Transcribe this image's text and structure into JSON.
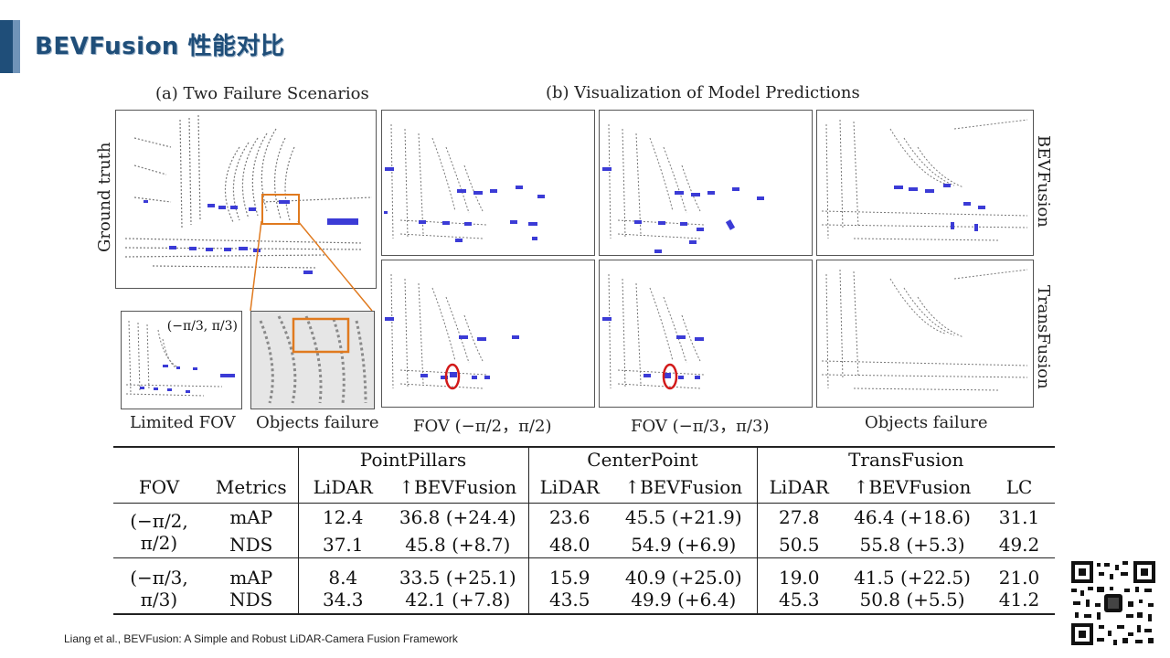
{
  "slide": {
    "title": "BEVFusion 性能对比"
  },
  "figure": {
    "caption_a": "(a) Two Failure Scenarios",
    "caption_b": "(b) Visualization of Model Predictions",
    "row_label_left": "Ground truth",
    "row_label_right_top": "BEVFusion",
    "row_label_right_bottom": "TransFusion",
    "inset_range_label": "(−π/3, π/3)",
    "bottom_captions": [
      "Limited FOV",
      "Objects failure",
      "FOV (−π/2，π/2)",
      "FOV (−π/3，π/3)",
      "Objects failure"
    ],
    "colors": {
      "box": "#3b3bd6",
      "highlight": "#e07a1f",
      "miss_circle": "#d21a1a",
      "points": "#7a7a7a"
    }
  },
  "table": {
    "group_headers": [
      "PointPillars",
      "CenterPoint",
      "TransFusion"
    ],
    "column_headers": [
      "FOV",
      "Metrics",
      "LiDAR",
      "↑BEVFusion",
      "LiDAR",
      "↑BEVFusion",
      "LiDAR",
      "↑BEVFusion",
      "LC"
    ],
    "blocks": [
      {
        "fov_line1": "(−π/2,",
        "fov_line2": "π/2)",
        "rows": [
          [
            "mAP",
            "12.4",
            "36.8 (+24.4)",
            "23.6",
            "45.5 (+21.9)",
            "27.8",
            "46.4 (+18.6)",
            "31.1"
          ],
          [
            "NDS",
            "37.1",
            "45.8 (+8.7)",
            "48.0",
            "54.9 (+6.9)",
            "50.5",
            "55.8 (+5.3)",
            "49.2"
          ]
        ]
      },
      {
        "fov_line1": "(−π/3,",
        "fov_line2": "π/3)",
        "rows": [
          [
            "mAP",
            "8.4",
            "33.5 (+25.1)",
            "15.9",
            "40.9 (+25.0)",
            "19.0",
            "41.5 (+22.5)",
            "21.0"
          ],
          [
            "NDS",
            "34.3",
            "42.1 (+7.8)",
            "43.5",
            "49.9 (+6.4)",
            "45.3",
            "50.8 (+5.5)",
            "41.2"
          ]
        ]
      }
    ]
  },
  "footer": {
    "citation": "Liang et al., BEVFusion:  A Simple and Robust LiDAR-Camera Fusion Framework"
  }
}
